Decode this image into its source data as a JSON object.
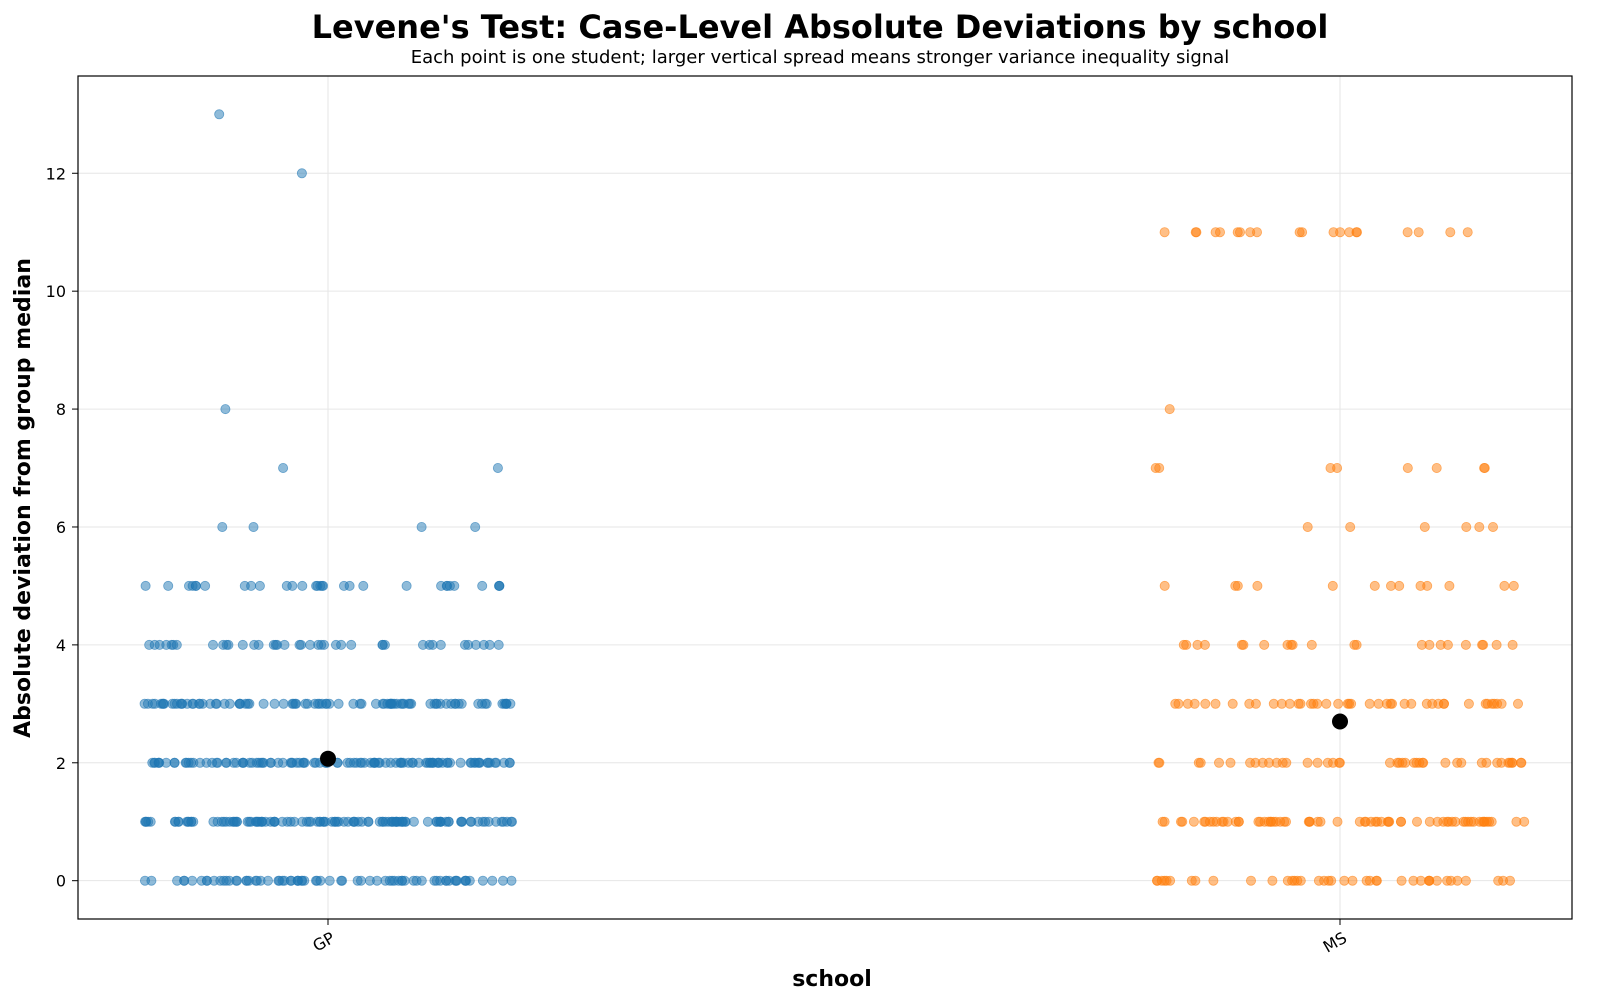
{
  "chart_data": {
    "type": "scatter",
    "title": "Levene's Test: Case-Level Absolute Deviations by school",
    "subtitle": "Each point is one student; larger vertical spread means stronger variance inequality signal",
    "xlabel": "school",
    "ylabel": "Absolute deviation from group median",
    "categories": [
      "GP",
      "MS"
    ],
    "ylim": [
      -0.65,
      13.65
    ],
    "yticks": [
      0,
      2,
      4,
      6,
      8,
      10,
      12
    ],
    "grid": true,
    "series": [
      {
        "category": "GP",
        "color": "#1f77b4",
        "mean": 2.07,
        "counts": {
          "0": 73,
          "1": 113,
          "2": 108,
          "3": 89,
          "4": 40,
          "5": 31,
          "6": 4,
          "7": 2,
          "8": 1,
          "12": 1,
          "13": 1
        }
      },
      {
        "category": "MS",
        "color": "#ff7f0e",
        "mean": 2.7,
        "counts": {
          "0": 40,
          "1": 67,
          "2": 42,
          "3": 42,
          "4": 22,
          "5": 13,
          "6": 6,
          "7": 8,
          "8": 1,
          "11": 20
        }
      }
    ],
    "mean_marker_color": "#000000"
  }
}
